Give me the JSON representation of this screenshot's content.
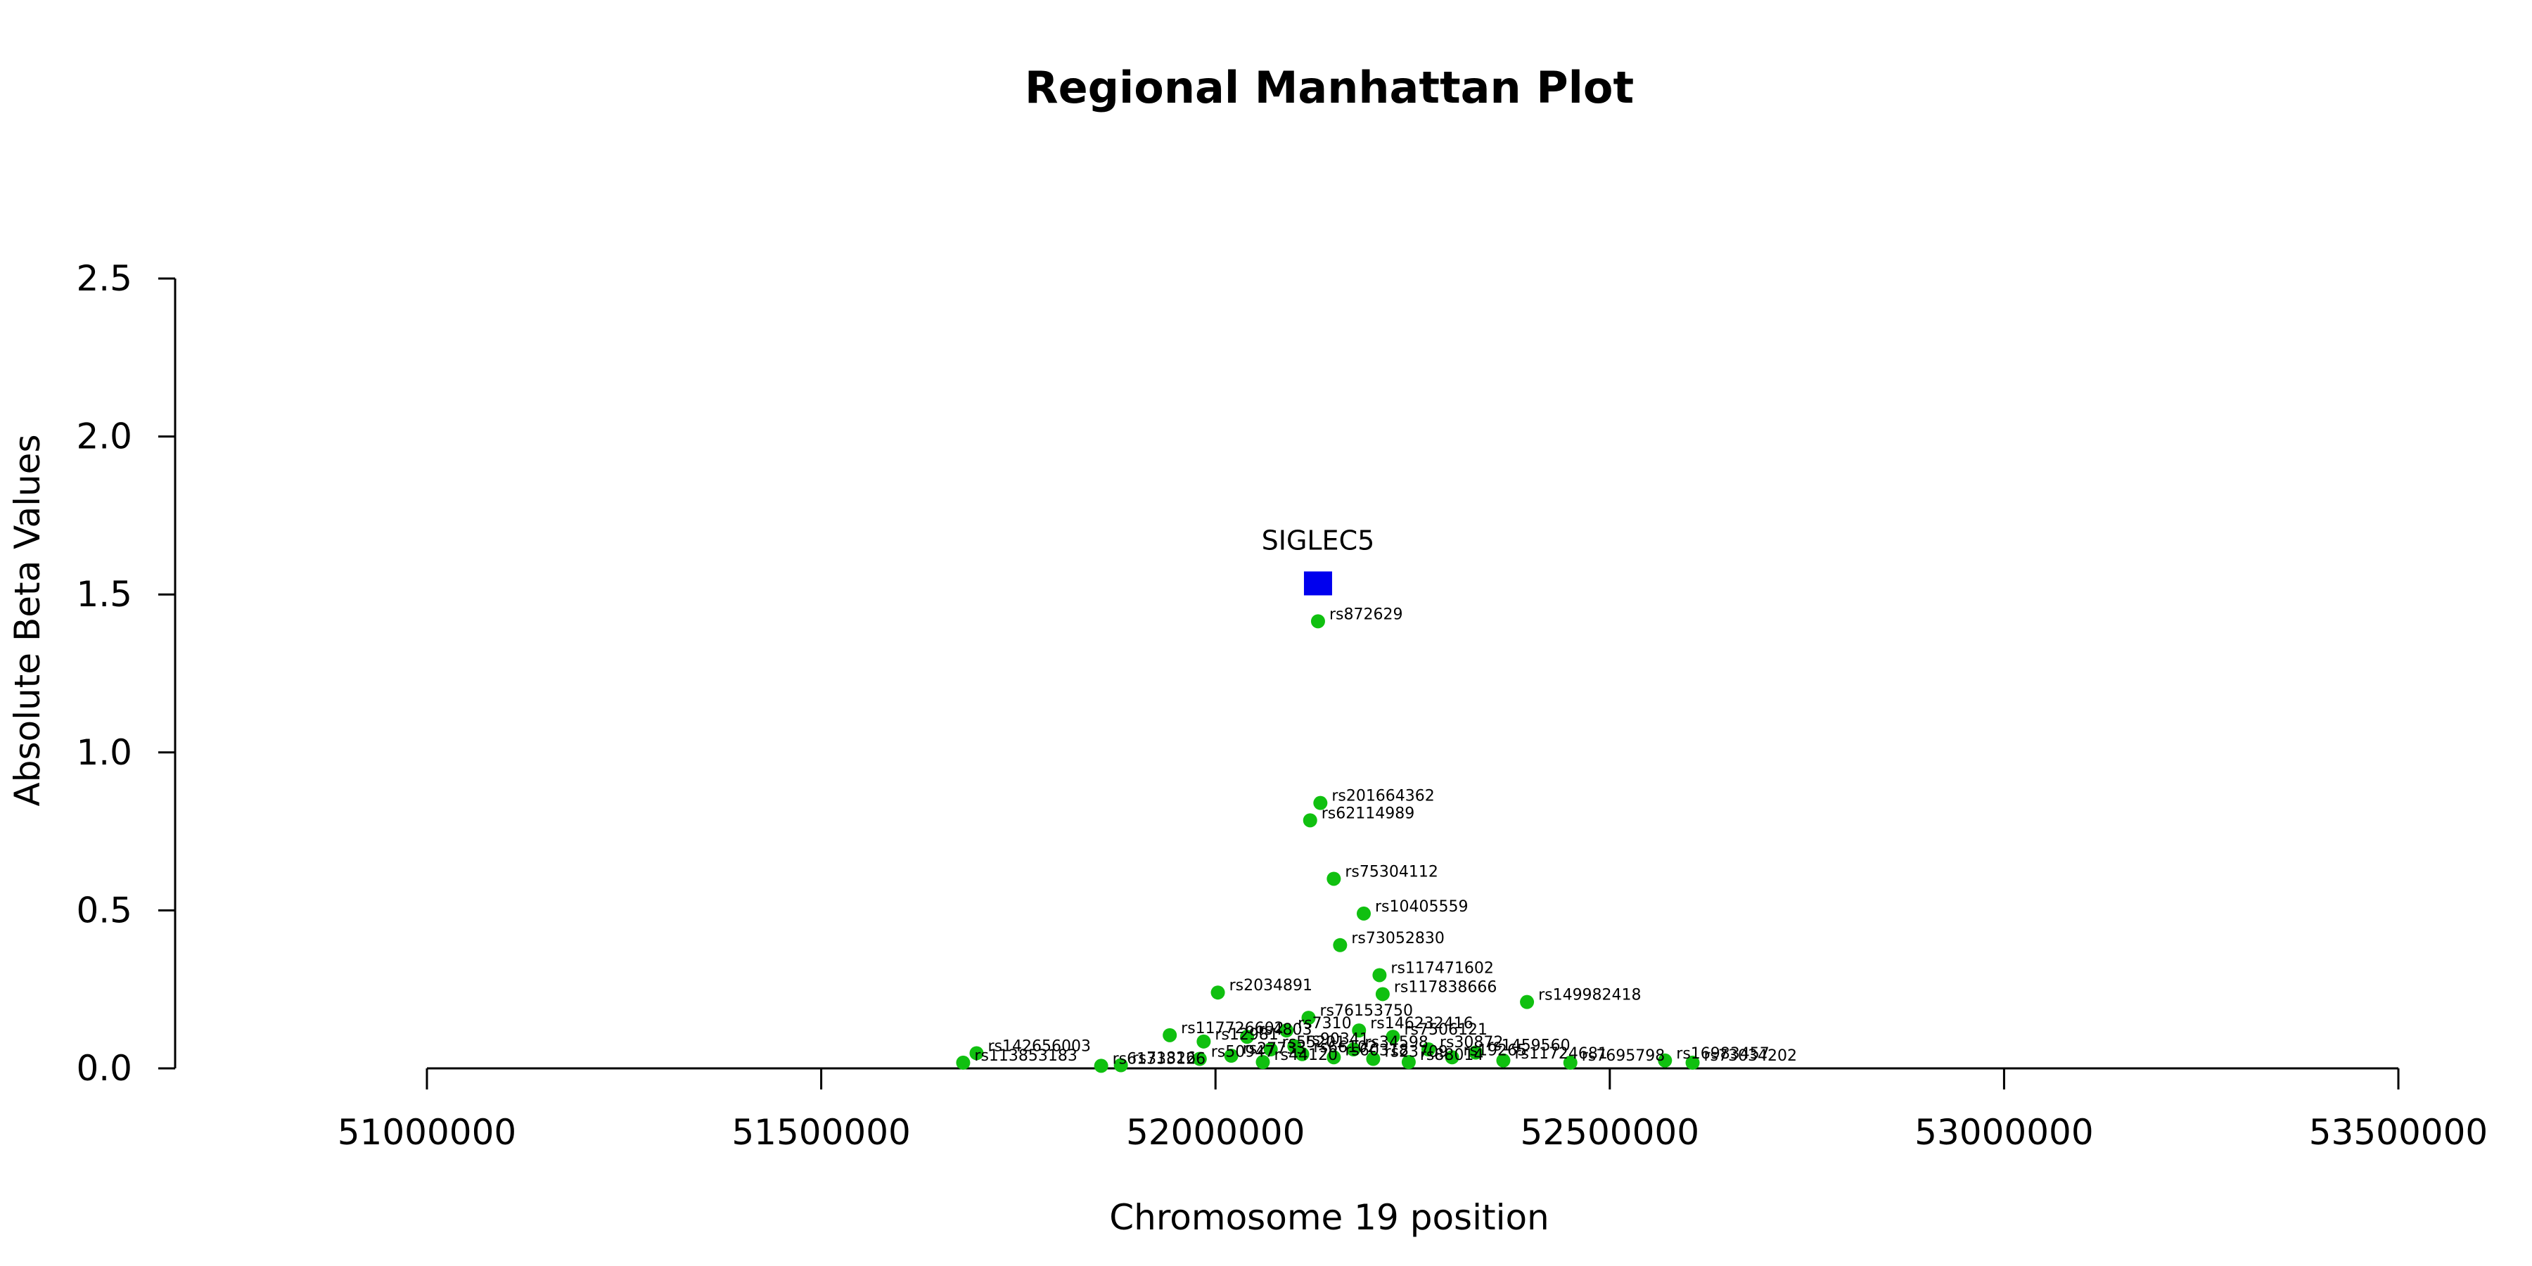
{
  "chart_data": {
    "type": "scatter",
    "title": "Regional Manhattan Plot",
    "xlabel": "Chromosome 19 position",
    "ylabel": "Absolute Beta Values",
    "xlim": [
      51000000,
      53500000
    ],
    "ylim": [
      0,
      2.5
    ],
    "x_ticks": [
      51000000,
      51500000,
      52000000,
      52500000,
      53000000,
      53500000
    ],
    "x_tick_labels": [
      "51000000",
      "51500000",
      "52000000",
      "52500000",
      "53000000",
      "53500000"
    ],
    "y_ticks": [
      0,
      0.5,
      1,
      1.5,
      2,
      2.5
    ],
    "y_tick_labels": [
      "0.0",
      "0.5",
      "1.0",
      "1.5",
      "2.0",
      "2.5"
    ],
    "grid": false,
    "colors": {
      "snp": "#10c010",
      "gene": "#0000ee"
    },
    "genes": [
      {
        "name": "SIGLEC5",
        "x": 52130000,
        "y": 1.535
      }
    ],
    "series": [
      {
        "points": [
          {
            "id": "rs872629",
            "x": 52130000,
            "y": 1.415
          },
          {
            "id": "rs201664362",
            "x": 52133000,
            "y": 0.84
          },
          {
            "id": "rs62114989",
            "x": 52120000,
            "y": 0.785
          },
          {
            "id": "rs75304112",
            "x": 52150000,
            "y": 0.6
          },
          {
            "id": "rs10405559",
            "x": 52188000,
            "y": 0.49
          },
          {
            "id": "rs73052830",
            "x": 52158000,
            "y": 0.39
          },
          {
            "id": "rs117471602",
            "x": 52208000,
            "y": 0.295
          },
          {
            "id": "rs117838666",
            "x": 52212000,
            "y": 0.235
          },
          {
            "id": "rs149982418",
            "x": 52395000,
            "y": 0.21
          },
          {
            "id": "rs2034891",
            "x": 52003000,
            "y": 0.24
          },
          {
            "id": "rs76153750",
            "x": 52118000,
            "y": 0.16
          },
          {
            "id": "rs117726602",
            "x": 51942000,
            "y": 0.105
          },
          {
            "id": "rs146232416",
            "x": 52182000,
            "y": 0.12
          },
          {
            "id": "rs7506121",
            "x": 52225000,
            "y": 0.1
          },
          {
            "id": "rs142656003",
            "x": 51697000,
            "y": 0.048
          },
          {
            "id": "rs113853183",
            "x": 51680000,
            "y": 0.018
          },
          {
            "id": "rs61333126",
            "x": 51855000,
            "y": 0.008
          },
          {
            "id": "rs1459560",
            "x": 52330000,
            "y": 0.05
          },
          {
            "id": "rs11724681",
            "x": 52365000,
            "y": 0.025
          },
          {
            "id": "rs7695798",
            "x": 52450000,
            "y": 0.018
          },
          {
            "id": "rs16983457",
            "x": 52570000,
            "y": 0.025
          },
          {
            "id": "rs73034202",
            "x": 52605000,
            "y": 0.018
          },
          {
            "id": "rs12981",
            "x": 51985000,
            "y": 0.085
          },
          {
            "id": "rs4803",
            "x": 52040000,
            "y": 0.1
          },
          {
            "id": "rs7310",
            "x": 52090000,
            "y": 0.12
          },
          {
            "id": "rs55201",
            "x": 52070000,
            "y": 0.06
          },
          {
            "id": "rs90341",
            "x": 52100000,
            "y": 0.07
          },
          {
            "id": "rs30872",
            "x": 52270000,
            "y": 0.06
          },
          {
            "id": "rs44120",
            "x": 52060000,
            "y": 0.02
          },
          {
            "id": "rs60318",
            "x": 52150000,
            "y": 0.035
          },
          {
            "id": "rs23709",
            "x": 52200000,
            "y": 0.03
          },
          {
            "id": "rs88014",
            "x": 52245000,
            "y": 0.02
          },
          {
            "id": "rs19265",
            "x": 52300000,
            "y": 0.035
          },
          {
            "id": "rs50947",
            "x": 51980000,
            "y": 0.03
          },
          {
            "id": "rs27733",
            "x": 52020000,
            "y": 0.04
          },
          {
            "id": "rs66102",
            "x": 52110000,
            "y": 0.045
          },
          {
            "id": "rs34598",
            "x": 52175000,
            "y": 0.06
          },
          {
            "id": "rs71826",
            "x": 51880000,
            "y": 0.01
          }
        ]
      }
    ]
  }
}
